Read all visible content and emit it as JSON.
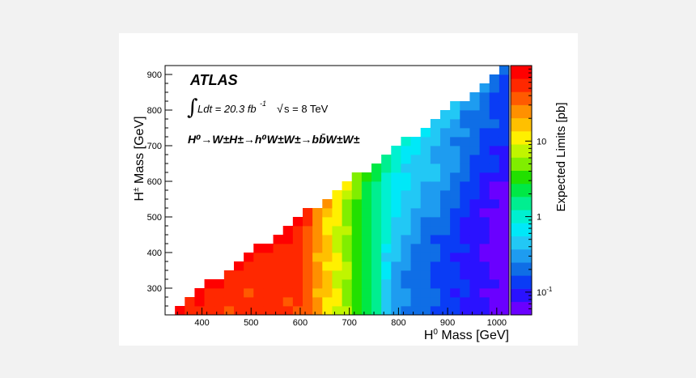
{
  "chart_data": {
    "type": "heatmap",
    "title": "",
    "experiment_label": "ATLAS",
    "luminosity_label": "Ldt = 20.3 fb",
    "luminosity_exponent": "-1",
    "energy_label": "s = 8 TeV",
    "process_label": "H⁰→W±H±→h⁰W±W±→bb̄W±W±",
    "xlabel": "H Mass [GeV]",
    "xlabel_superscript": "0",
    "ylabel": "H Mass [GeV]",
    "ylabel_superscript": "±",
    "colorbar_label": "Expected Limits [pb]",
    "xlim": [
      325,
      1025
    ],
    "ylim": [
      225,
      925
    ],
    "x_ticks": [
      400,
      500,
      600,
      700,
      800,
      900,
      1000
    ],
    "y_ticks": [
      300,
      400,
      500,
      600,
      700,
      800,
      900
    ],
    "colorbar_range": [
      0.05,
      100
    ],
    "colorbar_scale": "log",
    "colorbar_ticks": [
      "10",
      "1",
      "10"
    ],
    "colorbar_tick_values": [
      10,
      1,
      0.1
    ],
    "colorbar_tick_superscripts": [
      "",
      "",
      "-1"
    ],
    "bin_width_x": 20,
    "bin_width_y": 25,
    "region": "H± mass < H⁰ mass - 100 GeV",
    "trend": "Expected limits are largest (~50 pb) at low H⁰ mass (350–600 GeV), fall to ~1 pb near H⁰ ≈ 700–800 GeV, and reach ~0.05–0.1 pb at the highest H⁰ masses near the kinematic edge."
  }
}
